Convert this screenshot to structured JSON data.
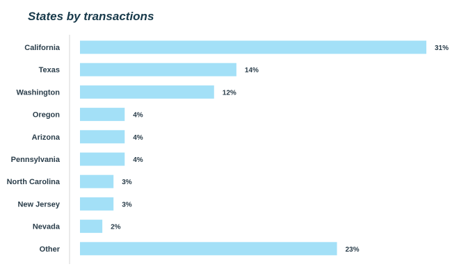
{
  "chart": {
    "title": "States by transactions",
    "bar_color": "#a3e0f7",
    "axis_color": "#d6d6d6",
    "text_color": "#2a3d4a",
    "title_color": "#17394a"
  },
  "chart_data": {
    "type": "bar",
    "orientation": "horizontal",
    "title": "States by transactions",
    "xlabel": "",
    "ylabel": "",
    "categories": [
      "California",
      "Texas",
      "Washington",
      "Oregon",
      "Arizona",
      "Pennsylvania",
      "North Carolina",
      "New Jersey",
      "Nevada",
      "Other"
    ],
    "values": [
      31,
      14,
      12,
      4,
      4,
      4,
      3,
      3,
      2,
      23
    ],
    "value_labels": [
      "31%",
      "14%",
      "12%",
      "4%",
      "4%",
      "4%",
      "3%",
      "3%",
      "2%",
      "23%"
    ],
    "unit": "%",
    "xlim": [
      0,
      31
    ],
    "grid": false,
    "legend": "none"
  }
}
